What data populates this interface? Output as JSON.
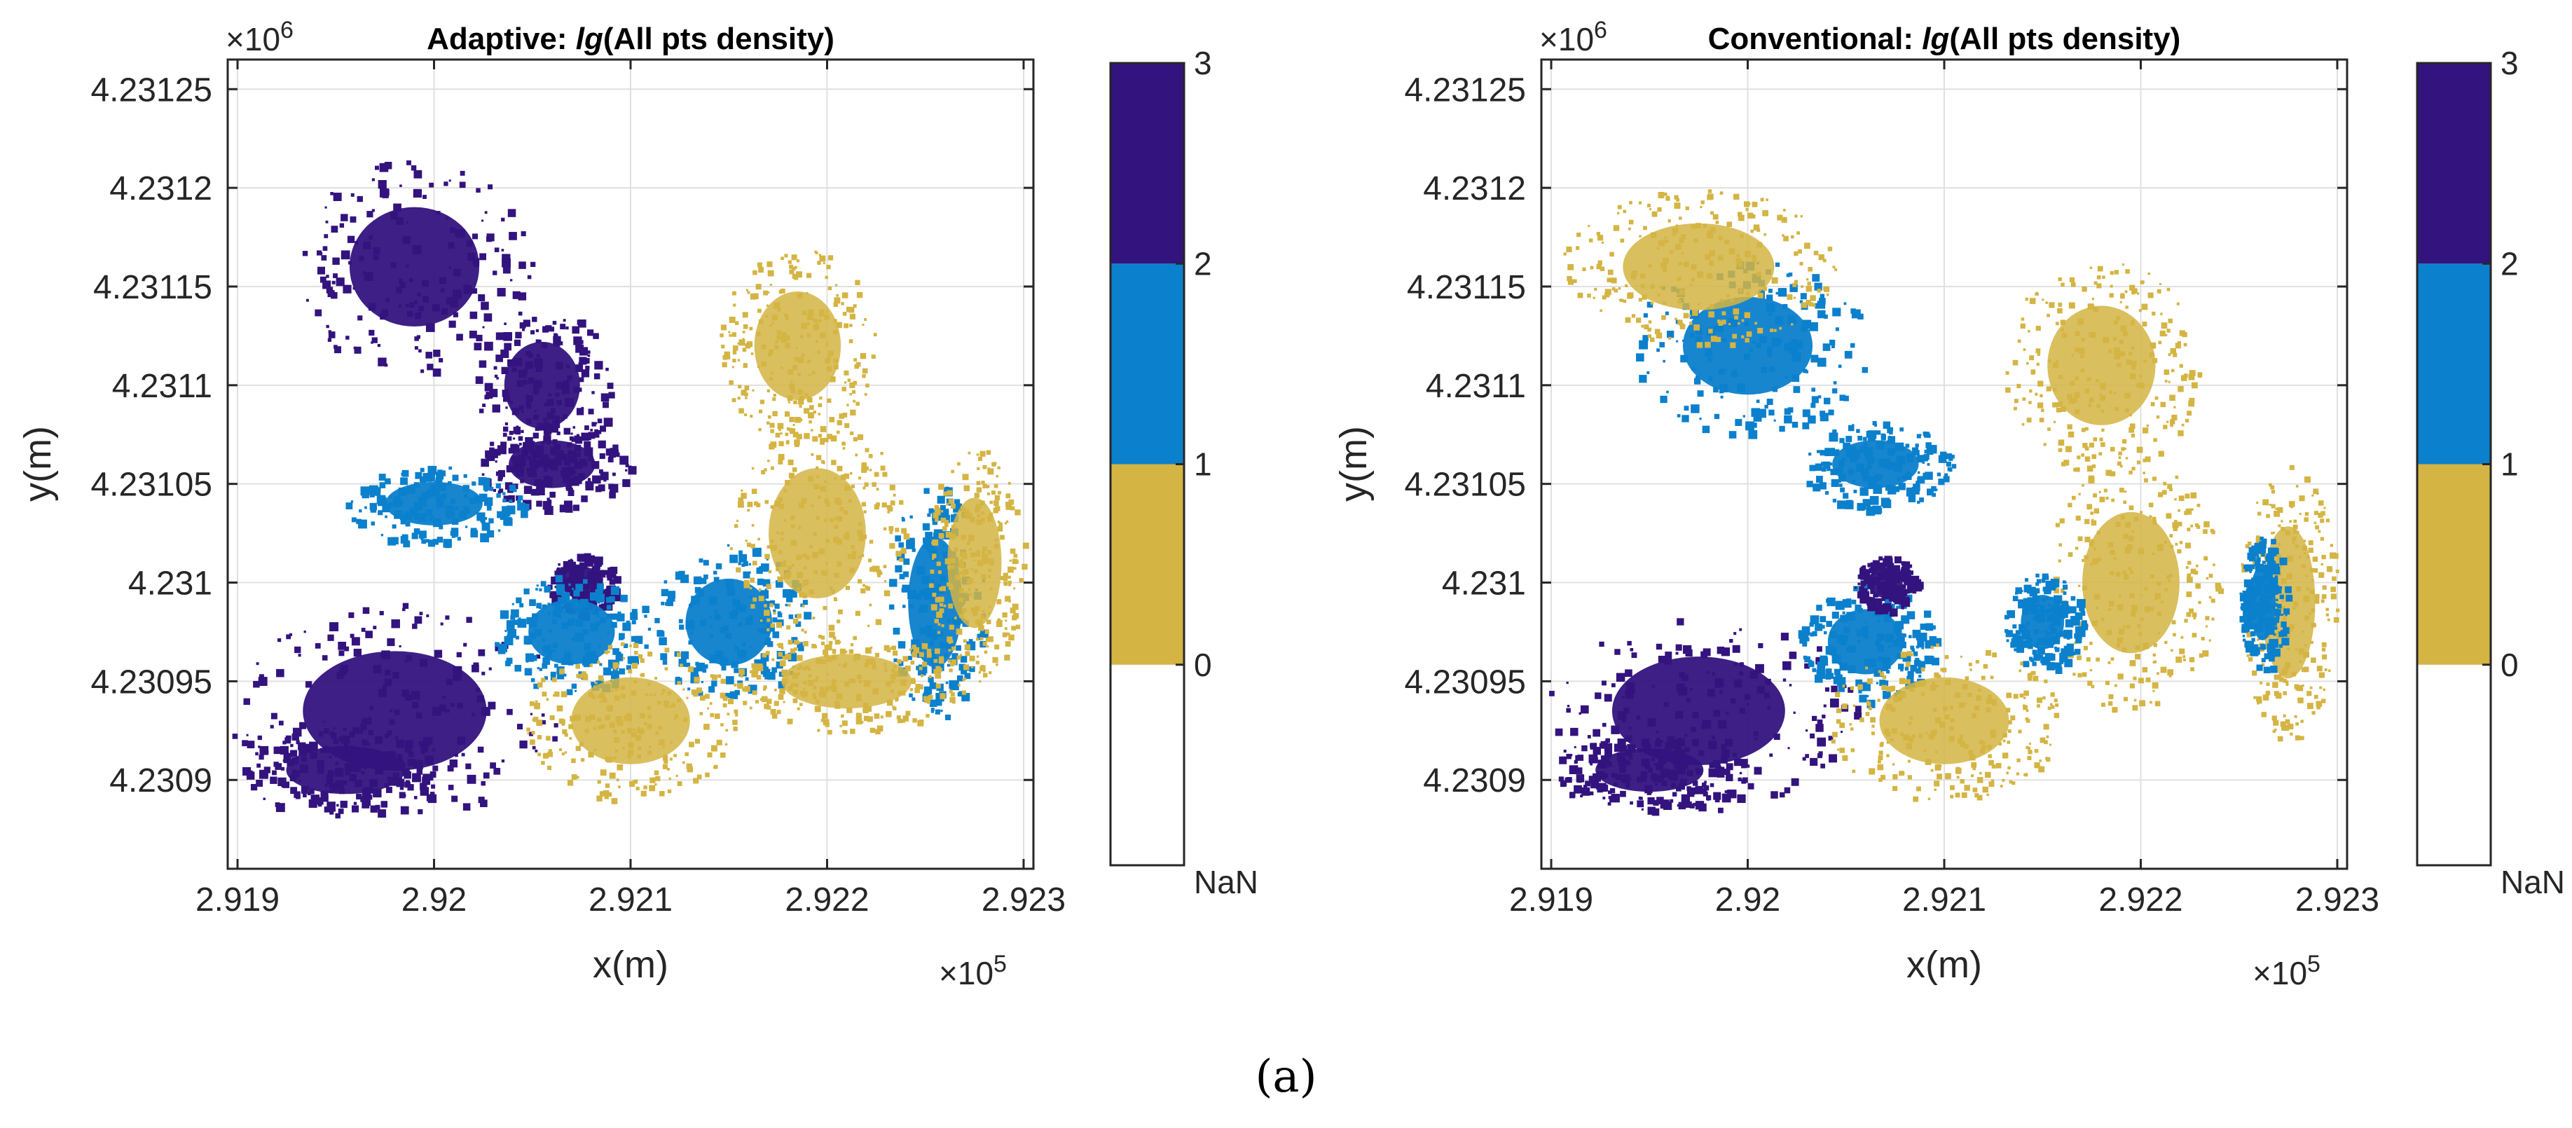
{
  "caption": "(a)",
  "colors": {
    "nan": "#ffffff",
    "c0": "#d4b443",
    "c1": "#0b80cc",
    "c2": "#33137e",
    "axis": "#262626",
    "grid": "#e0e0e0"
  },
  "chart_data": [
    {
      "type": "heatmap",
      "title_prefix": "Adaptive: ",
      "title_italic": "lg",
      "title_suffix": "(All pts density)",
      "xlabel": "x(m)",
      "ylabel": "y(m)",
      "x_multiplier_base": "×10",
      "x_multiplier_exp": "5",
      "y_multiplier_base": "×10",
      "y_multiplier_exp": "6",
      "xlim": [
        291895,
        292305
      ],
      "ylim": [
        4230855,
        4231265
      ],
      "xticks": [
        291900,
        292000,
        292100,
        292200,
        292300
      ],
      "xtick_labels": [
        "2.919",
        "2.92",
        "2.921",
        "2.922",
        "2.923"
      ],
      "yticks": [
        4230900,
        4230950,
        4231000,
        4231050,
        4231100,
        4231150,
        4231200,
        4231250
      ],
      "ytick_labels": [
        "4.2309",
        "4.23095",
        "4.231",
        "4.23105",
        "4.2311",
        "4.23115",
        "4.2312",
        "4.23125"
      ],
      "colorbar": {
        "levels": [
          {
            "label": "NaN",
            "color": "#ffffff"
          },
          {
            "label": "0",
            "color": "#d4b443"
          },
          {
            "label": "1",
            "color": "#0b80cc"
          },
          {
            "label": "2",
            "color": "#33137e"
          },
          {
            "label": "3",
            "color": ""
          }
        ]
      },
      "regions": [
        {
          "class": 2,
          "x": 291980,
          "y": 4230935,
          "rx": 85,
          "ry": 55
        },
        {
          "class": 2,
          "x": 291955,
          "y": 4230905,
          "rx": 55,
          "ry": 22
        },
        {
          "class": 2,
          "x": 291990,
          "y": 4231160,
          "rx": 60,
          "ry": 55
        },
        {
          "class": 2,
          "x": 292055,
          "y": 4231100,
          "rx": 35,
          "ry": 40
        },
        {
          "class": 2,
          "x": 292060,
          "y": 4231060,
          "rx": 40,
          "ry": 22
        },
        {
          "class": 2,
          "x": 292075,
          "y": 4231000,
          "rx": 18,
          "ry": 15
        },
        {
          "class": 1,
          "x": 292070,
          "y": 4230975,
          "rx": 40,
          "ry": 30
        },
        {
          "class": 1,
          "x": 292150,
          "y": 4230980,
          "rx": 40,
          "ry": 40
        },
        {
          "class": 1,
          "x": 292255,
          "y": 4230990,
          "rx": 25,
          "ry": 60
        },
        {
          "class": 1,
          "x": 292000,
          "y": 4231040,
          "rx": 45,
          "ry": 20
        },
        {
          "class": 0,
          "x": 292195,
          "y": 4231025,
          "rx": 45,
          "ry": 60
        },
        {
          "class": 0,
          "x": 292185,
          "y": 4231120,
          "rx": 40,
          "ry": 50
        },
        {
          "class": 0,
          "x": 292100,
          "y": 4230930,
          "rx": 55,
          "ry": 40
        },
        {
          "class": 0,
          "x": 292210,
          "y": 4230950,
          "rx": 60,
          "ry": 25
        },
        {
          "class": 0,
          "x": 292275,
          "y": 4231010,
          "rx": 25,
          "ry": 60
        }
      ]
    },
    {
      "type": "heatmap",
      "title_prefix": "Conventional: ",
      "title_italic": "lg",
      "title_suffix": "(All pts density)",
      "xlabel": "x(m)",
      "ylabel": "y(m)",
      "x_multiplier_base": "×10",
      "x_multiplier_exp": "5",
      "y_multiplier_base": "×10",
      "y_multiplier_exp": "6",
      "xlim": [
        291895,
        292305
      ],
      "ylim": [
        4230855,
        4231265
      ],
      "xticks": [
        291900,
        292000,
        292100,
        292200,
        292300
      ],
      "xtick_labels": [
        "2.919",
        "2.92",
        "2.921",
        "2.922",
        "2.923"
      ],
      "yticks": [
        4230900,
        4230950,
        4231000,
        4231050,
        4231100,
        4231150,
        4231200,
        4231250
      ],
      "ytick_labels": [
        "4.2309",
        "4.23095",
        "4.231",
        "4.23105",
        "4.2311",
        "4.23115",
        "4.2312",
        "4.23125"
      ],
      "colorbar": {
        "levels": [
          {
            "label": "NaN",
            "color": "#ffffff"
          },
          {
            "label": "0",
            "color": "#d4b443"
          },
          {
            "label": "1",
            "color": "#0b80cc"
          },
          {
            "label": "2",
            "color": "#33137e"
          },
          {
            "label": "3",
            "color": ""
          }
        ]
      },
      "regions": [
        {
          "class": 2,
          "x": 291975,
          "y": 4230935,
          "rx": 80,
          "ry": 50
        },
        {
          "class": 2,
          "x": 291950,
          "y": 4230905,
          "rx": 50,
          "ry": 20
        },
        {
          "class": 1,
          "x": 292000,
          "y": 4231120,
          "rx": 60,
          "ry": 45
        },
        {
          "class": 1,
          "x": 292065,
          "y": 4231060,
          "rx": 40,
          "ry": 22
        },
        {
          "class": 1,
          "x": 292060,
          "y": 4230970,
          "rx": 35,
          "ry": 30
        },
        {
          "class": 2,
          "x": 292070,
          "y": 4231000,
          "rx": 16,
          "ry": 14
        },
        {
          "class": 0,
          "x": 292195,
          "y": 4231000,
          "rx": 45,
          "ry": 65
        },
        {
          "class": 0,
          "x": 292180,
          "y": 4231110,
          "rx": 50,
          "ry": 55
        },
        {
          "class": 0,
          "x": 292100,
          "y": 4230930,
          "rx": 60,
          "ry": 40
        },
        {
          "class": 0,
          "x": 291975,
          "y": 4231160,
          "rx": 70,
          "ry": 40
        },
        {
          "class": 0,
          "x": 292275,
          "y": 4230990,
          "rx": 25,
          "ry": 70
        },
        {
          "class": 1,
          "x": 292150,
          "y": 4230980,
          "rx": 20,
          "ry": 25
        },
        {
          "class": 1,
          "x": 292262,
          "y": 4230990,
          "rx": 12,
          "ry": 35
        }
      ]
    }
  ]
}
